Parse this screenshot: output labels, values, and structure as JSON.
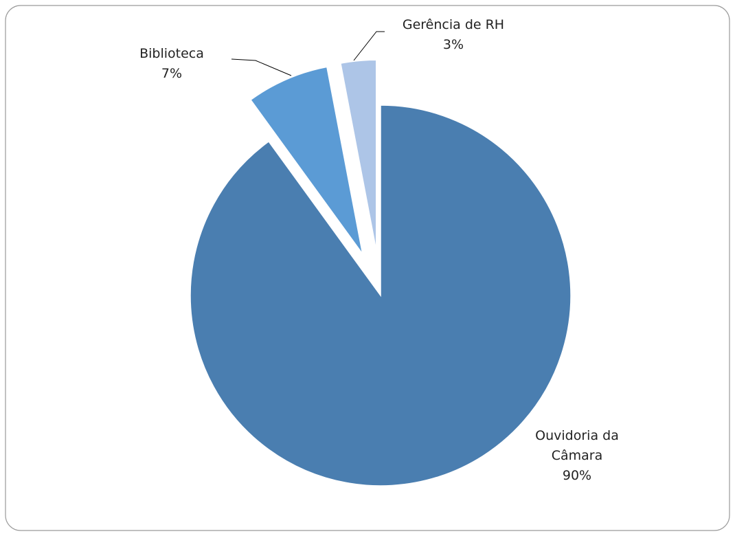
{
  "chart_data": {
    "type": "pie",
    "categories": [
      "Ouvidoria da Câmara",
      "Biblioteca",
      "Gerência de RH"
    ],
    "values": [
      90,
      7,
      3
    ],
    "value_labels": [
      "90%",
      "7%",
      "3%"
    ],
    "colors": [
      "#4a7eb0",
      "#5b9bd5",
      "#adc5e7"
    ]
  }
}
